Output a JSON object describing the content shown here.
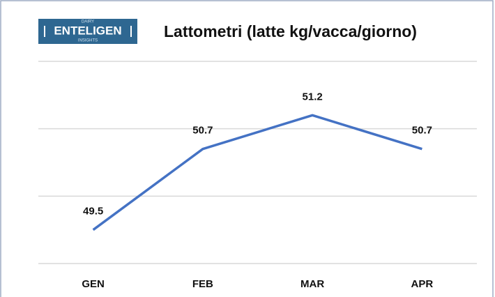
{
  "logo": {
    "top": "DAIRY",
    "main": "ENTELIGEN",
    "bottom": "INSIGHTS"
  },
  "chart_data": {
    "type": "line",
    "title": "Lattometri (latte kg/vacca/giorno)",
    "categories": [
      "GEN",
      "FEB",
      "MAR",
      "APR"
    ],
    "series": [
      {
        "name": "Lattometri",
        "color": "#4472c4",
        "values": [
          49.5,
          50.7,
          51.2,
          50.7
        ]
      }
    ],
    "ylim": [
      49,
      52
    ],
    "yticks": [
      49,
      50,
      51,
      52
    ],
    "grid": true
  }
}
